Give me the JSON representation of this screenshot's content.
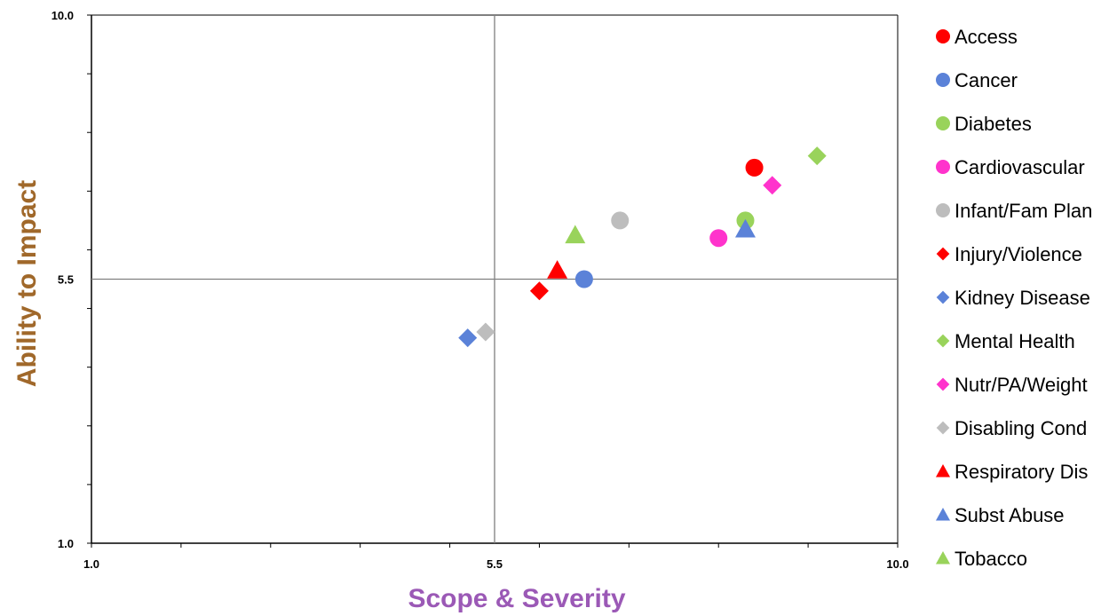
{
  "chart_data": {
    "type": "scatter",
    "xlabel": "Scope & Severity",
    "ylabel": "Ability to Impact",
    "xlim": [
      1.0,
      10.0
    ],
    "ylim": [
      1.0,
      10.0
    ],
    "x_ticks": [
      "1.0",
      "5.5",
      "10.0"
    ],
    "y_ticks": [
      "1.0",
      "5.5",
      "10.0"
    ],
    "reference_lines": {
      "x": 5.5,
      "y": 5.5
    },
    "grid": false,
    "legend_position": "right",
    "colors": {
      "xlabel": "#9B59B6",
      "ylabel": "#A0682A",
      "red": "#FF0000",
      "blue": "#5B82D8",
      "green": "#99D35B",
      "magenta": "#FF33CC",
      "gray": "#BDBDBD",
      "reference_line": "#808080"
    },
    "series": [
      {
        "name": "Access",
        "marker": "circle",
        "color": "#FF0000",
        "x": 8.4,
        "y": 7.4
      },
      {
        "name": "Cancer",
        "marker": "circle",
        "color": "#5B82D8",
        "x": 6.5,
        "y": 5.5
      },
      {
        "name": "Diabetes",
        "marker": "circle",
        "color": "#99D35B",
        "x": 8.3,
        "y": 6.5
      },
      {
        "name": "Cardiovascular",
        "marker": "circle",
        "color": "#FF33CC",
        "x": 8.0,
        "y": 6.2
      },
      {
        "name": "Infant/Fam Plan",
        "marker": "circle",
        "color": "#BDBDBD",
        "x": 6.9,
        "y": 6.5
      },
      {
        "name": "Injury/Violence",
        "marker": "diamond",
        "color": "#FF0000",
        "x": 6.0,
        "y": 5.3
      },
      {
        "name": "Kidney Disease",
        "marker": "diamond",
        "color": "#5B82D8",
        "x": 5.2,
        "y": 4.5
      },
      {
        "name": "Mental Health",
        "marker": "diamond",
        "color": "#99D35B",
        "x": 9.1,
        "y": 7.6
      },
      {
        "name": "Nutr/PA/Weight",
        "marker": "diamond",
        "color": "#FF33CC",
        "x": 8.6,
        "y": 7.1
      },
      {
        "name": "Disabling Cond",
        "marker": "diamond",
        "color": "#BDBDBD",
        "x": 5.4,
        "y": 4.6
      },
      {
        "name": "Respiratory Dis",
        "marker": "triangle",
        "color": "#FF0000",
        "x": 6.2,
        "y": 5.65
      },
      {
        "name": "Subst Abuse",
        "marker": "triangle",
        "color": "#5B82D8",
        "x": 8.3,
        "y": 6.35
      },
      {
        "name": "Tobacco",
        "marker": "triangle",
        "color": "#99D35B",
        "x": 6.4,
        "y": 6.25
      }
    ]
  }
}
